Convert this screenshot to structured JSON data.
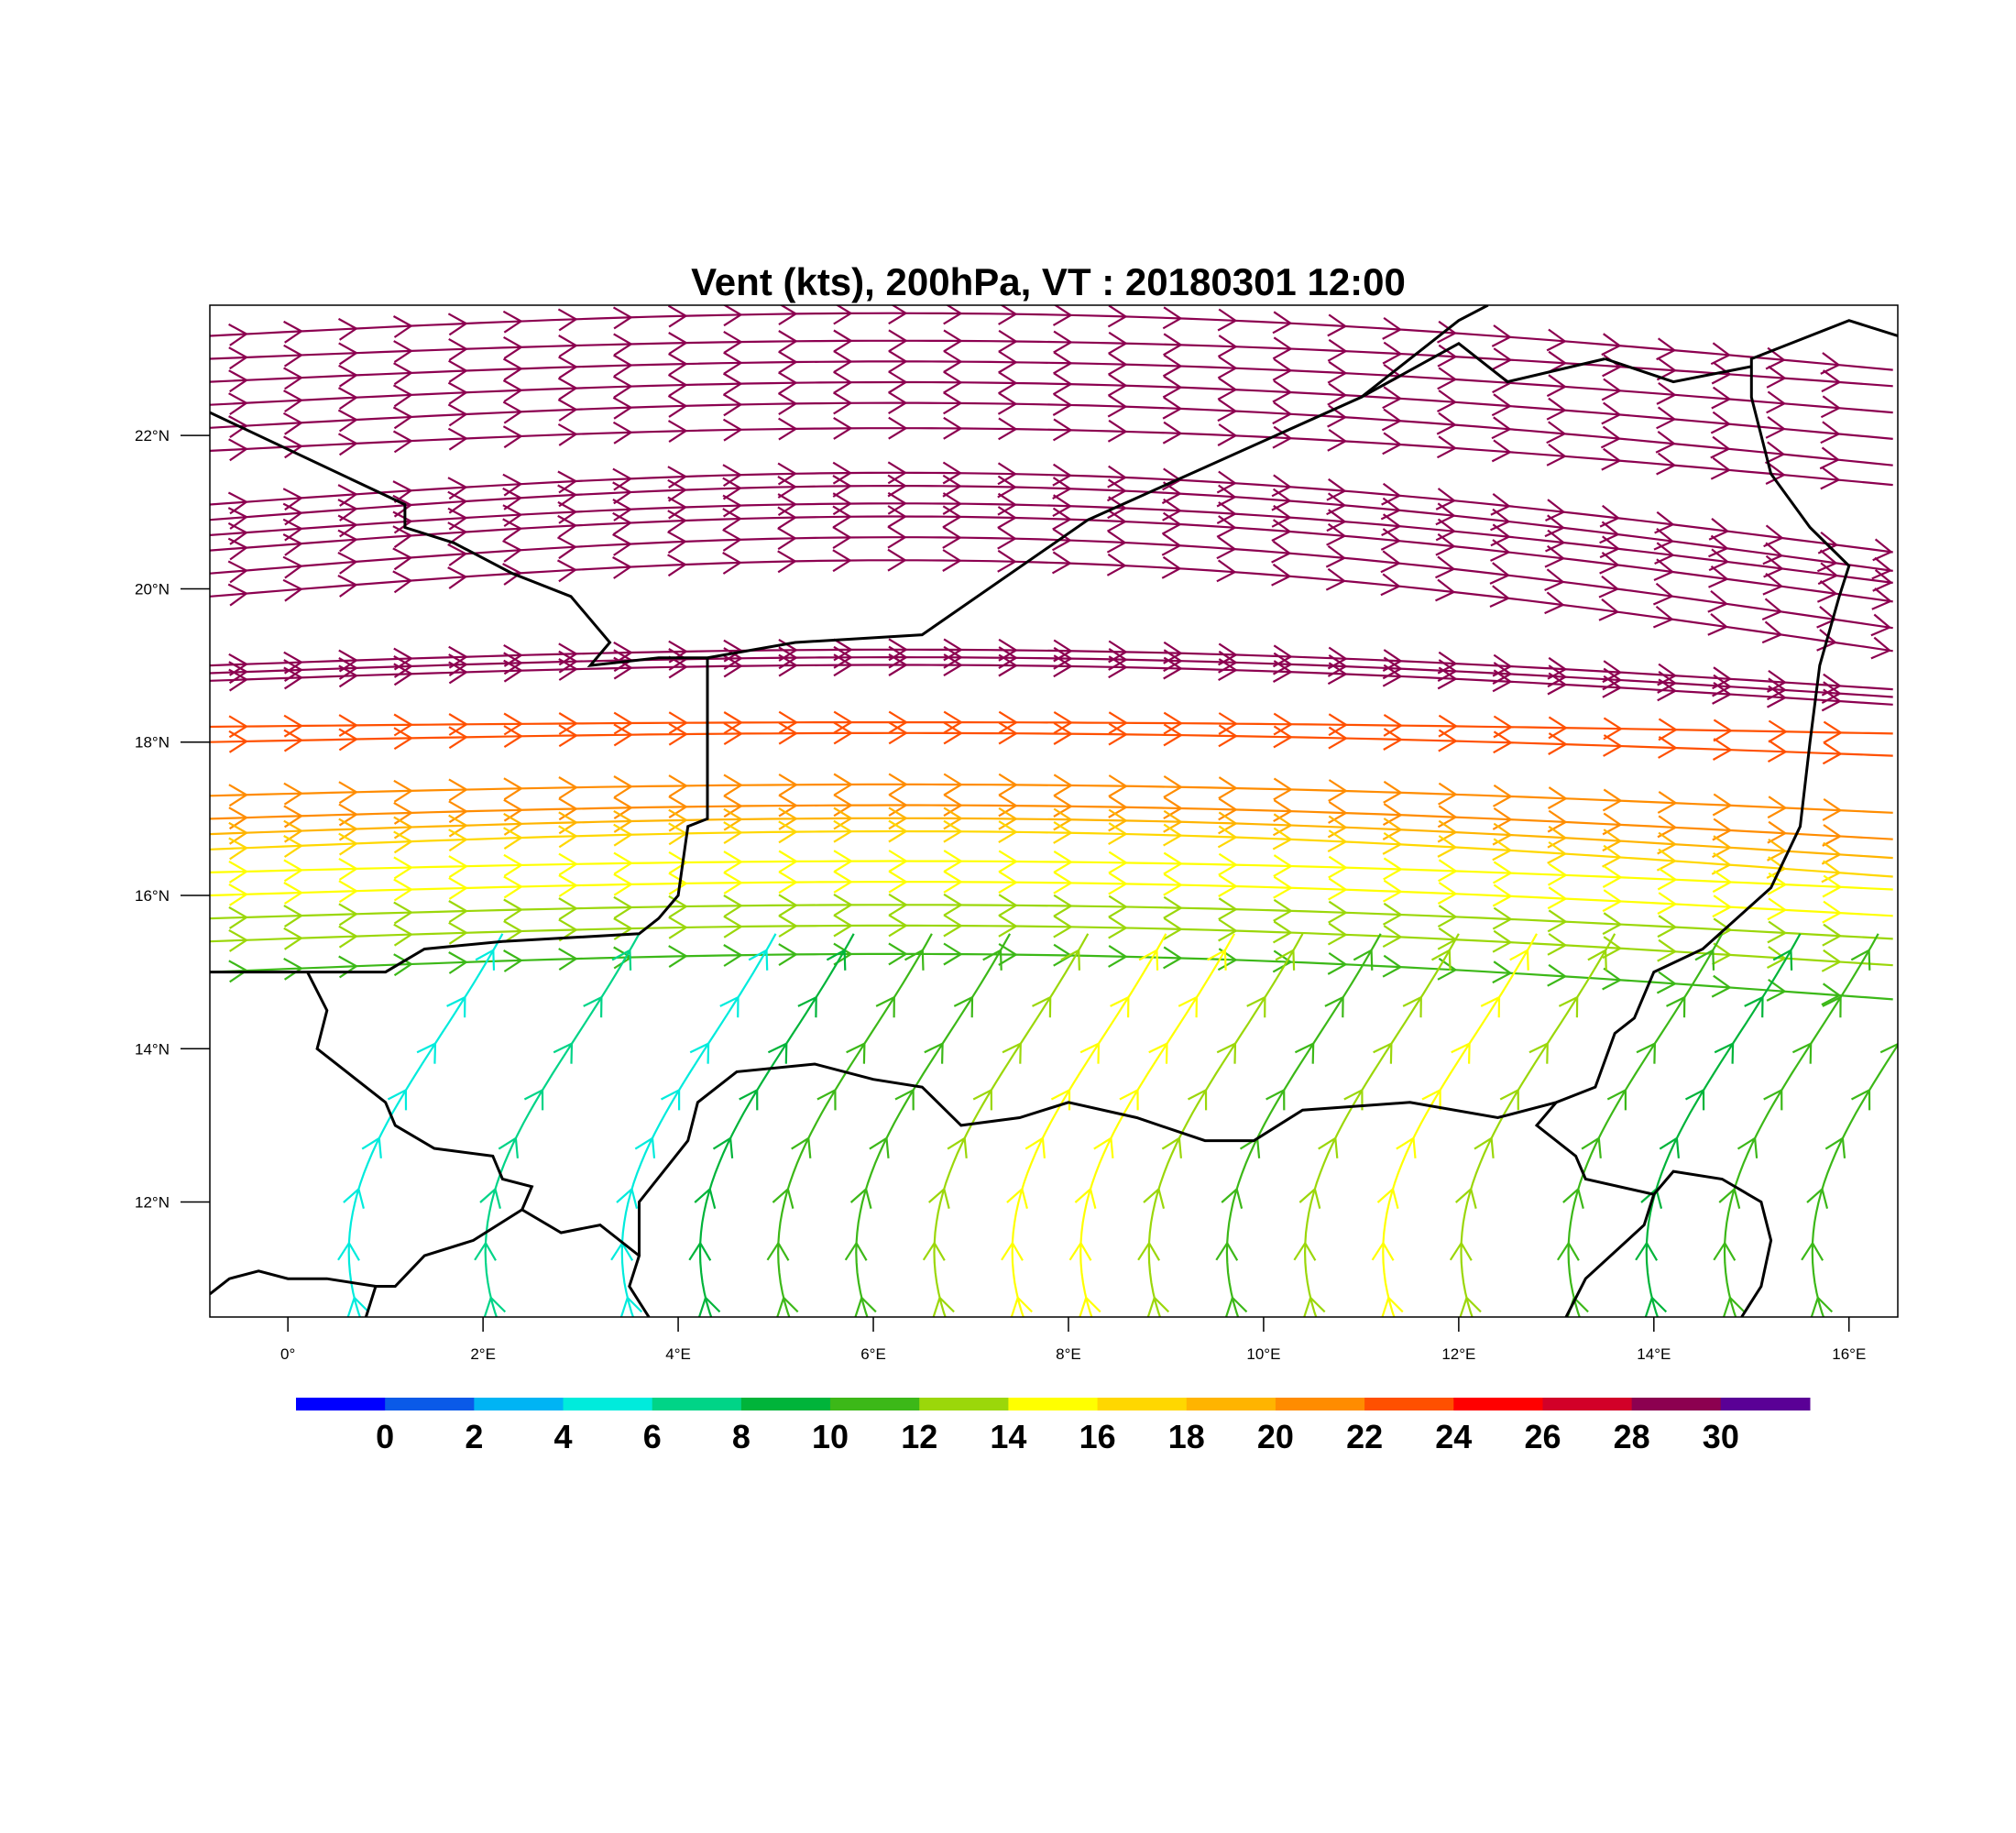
{
  "title": "Vent (kts), 200hPa, VT : 20180301  12:00",
  "map": {
    "lon_range": [
      -0.8,
      16.5
    ],
    "lat_range": [
      10.5,
      23.7
    ],
    "lon_ticks": [
      {
        "value": 0,
        "label": "0°"
      },
      {
        "value": 2,
        "label": "2°E"
      },
      {
        "value": 4,
        "label": "4°E"
      },
      {
        "value": 6,
        "label": "6°E"
      },
      {
        "value": 8,
        "label": "8°E"
      },
      {
        "value": 10,
        "label": "10°E"
      },
      {
        "value": 12,
        "label": "12°E"
      },
      {
        "value": 14,
        "label": "14°E"
      },
      {
        "value": 16,
        "label": "16°E"
      }
    ],
    "lat_ticks": [
      {
        "value": 12,
        "label": "12°N"
      },
      {
        "value": 14,
        "label": "14°N"
      },
      {
        "value": 16,
        "label": "16°N"
      },
      {
        "value": 18,
        "label": "18°N"
      },
      {
        "value": 20,
        "label": "20°N"
      },
      {
        "value": 22,
        "label": "22°N"
      }
    ],
    "borders": [
      [
        [
          -0.8,
          22.3
        ],
        [
          1.2,
          21.1
        ],
        [
          1.2,
          20.8
        ],
        [
          1.7,
          20.6
        ],
        [
          2.3,
          20.2
        ],
        [
          2.9,
          19.9
        ],
        [
          3.3,
          19.3
        ],
        [
          3.1,
          19.0
        ],
        [
          3.8,
          19.1
        ],
        [
          4.3,
          19.1
        ],
        [
          5.2,
          19.3
        ],
        [
          6.5,
          19.4
        ],
        [
          8.2,
          20.9
        ],
        [
          11.0,
          22.5
        ],
        [
          12.0,
          23.5
        ],
        [
          12.3,
          23.7
        ]
      ],
      [
        [
          4.3,
          19.1
        ],
        [
          4.3,
          17.0
        ],
        [
          4.1,
          16.9
        ],
        [
          4.0,
          16.0
        ],
        [
          3.8,
          15.7
        ],
        [
          3.6,
          15.5
        ],
        [
          2.2,
          15.4
        ],
        [
          1.4,
          15.3
        ],
        [
          1.0,
          15.0
        ],
        [
          0.2,
          15.0
        ],
        [
          -0.8,
          15.0
        ]
      ],
      [
        [
          0.2,
          15.0
        ],
        [
          0.4,
          14.5
        ],
        [
          0.3,
          14.0
        ],
        [
          1.0,
          13.3
        ],
        [
          1.1,
          13.0
        ],
        [
          1.5,
          12.7
        ],
        [
          2.1,
          12.6
        ],
        [
          2.2,
          12.3
        ],
        [
          2.5,
          12.2
        ],
        [
          2.4,
          11.9
        ],
        [
          2.8,
          11.6
        ],
        [
          3.2,
          11.7
        ],
        [
          3.6,
          11.3
        ],
        [
          3.5,
          10.9
        ],
        [
          3.7,
          10.5
        ]
      ],
      [
        [
          3.6,
          11.3
        ],
        [
          3.6,
          12.0
        ],
        [
          4.1,
          12.8
        ],
        [
          4.2,
          13.3
        ],
        [
          4.6,
          13.7
        ],
        [
          5.4,
          13.8
        ],
        [
          6.0,
          13.6
        ],
        [
          6.5,
          13.5
        ],
        [
          6.9,
          13.0
        ],
        [
          7.5,
          13.1
        ],
        [
          8.0,
          13.3
        ],
        [
          8.7,
          13.1
        ],
        [
          9.4,
          12.8
        ],
        [
          9.9,
          12.8
        ],
        [
          10.4,
          13.2
        ],
        [
          11.5,
          13.3
        ],
        [
          12.4,
          13.1
        ],
        [
          13.0,
          13.3
        ],
        [
          13.4,
          13.5
        ],
        [
          13.6,
          14.2
        ],
        [
          13.8,
          14.4
        ],
        [
          14.0,
          15.0
        ],
        [
          14.5,
          15.3
        ],
        [
          15.2,
          16.1
        ],
        [
          15.5,
          16.9
        ],
        [
          15.6,
          18.0
        ],
        [
          15.7,
          19.0
        ],
        [
          15.9,
          19.9
        ],
        [
          16.0,
          20.3
        ],
        [
          15.6,
          20.8
        ],
        [
          15.2,
          21.5
        ],
        [
          15.0,
          22.5
        ],
        [
          15.0,
          23.0
        ],
        [
          16.0,
          23.5
        ],
        [
          16.5,
          23.3
        ]
      ],
      [
        [
          13.0,
          13.3
        ],
        [
          12.8,
          13.0
        ],
        [
          13.2,
          12.6
        ],
        [
          13.3,
          12.3
        ],
        [
          14.0,
          12.1
        ],
        [
          14.2,
          12.4
        ],
        [
          14.7,
          12.3
        ],
        [
          15.1,
          12.0
        ],
        [
          15.2,
          11.5
        ],
        [
          15.1,
          10.9
        ],
        [
          14.9,
          10.5
        ]
      ],
      [
        [
          14.0,
          12.1
        ],
        [
          13.9,
          11.7
        ],
        [
          13.3,
          11.0
        ],
        [
          13.1,
          10.5
        ]
      ],
      [
        [
          -0.8,
          10.8
        ],
        [
          -0.6,
          11.0
        ],
        [
          -0.3,
          11.1
        ],
        [
          0.0,
          11.0
        ],
        [
          0.4,
          11.0
        ],
        [
          0.9,
          10.9
        ],
        [
          1.1,
          10.9
        ],
        [
          1.4,
          11.3
        ],
        [
          1.9,
          11.5
        ],
        [
          2.4,
          11.9
        ]
      ],
      [
        [
          0.9,
          10.9
        ],
        [
          0.8,
          10.5
        ]
      ],
      [
        [
          13.5,
          23.0
        ],
        [
          14.2,
          22.7
        ],
        [
          15.0,
          22.9
        ]
      ],
      [
        [
          11.0,
          22.5
        ],
        [
          12.0,
          23.2
        ],
        [
          12.5,
          22.7
        ],
        [
          13.5,
          23.0
        ]
      ]
    ],
    "streamlines": [
      {
        "lat": 23.3,
        "amp": 0.5,
        "speed": 31
      },
      {
        "lat": 23.0,
        "amp": 0.4,
        "speed": 31
      },
      {
        "lat": 22.7,
        "amp": 0.45,
        "speed": 31
      },
      {
        "lat": 22.4,
        "amp": 0.5,
        "speed": 31
      },
      {
        "lat": 22.1,
        "amp": 0.55,
        "speed": 31
      },
      {
        "lat": 21.8,
        "amp": 0.5,
        "speed": 31
      },
      {
        "lat": 21.1,
        "amp": 0.7,
        "speed": 31
      },
      {
        "lat": 20.9,
        "amp": 0.75,
        "speed": 31
      },
      {
        "lat": 20.7,
        "amp": 0.7,
        "speed": 31
      },
      {
        "lat": 20.5,
        "amp": 0.75,
        "speed": 31
      },
      {
        "lat": 20.2,
        "amp": 0.8,
        "speed": 31
      },
      {
        "lat": 19.9,
        "amp": 0.8,
        "speed": 31
      },
      {
        "lat": 19.0,
        "amp": 0.35,
        "speed": 31
      },
      {
        "lat": 18.9,
        "amp": 0.35,
        "speed": 31
      },
      {
        "lat": 18.8,
        "amp": 0.35,
        "speed": 31
      },
      {
        "lat": 18.2,
        "amp": 0.1,
        "speed": 25
      },
      {
        "lat": 18.0,
        "amp": 0.2,
        "speed": 24
      },
      {
        "lat": 17.3,
        "amp": 0.25,
        "speed": 23
      },
      {
        "lat": 17.0,
        "amp": 0.3,
        "speed": 22
      },
      {
        "lat": 16.8,
        "amp": 0.35,
        "speed": 21
      },
      {
        "lat": 16.6,
        "amp": 0.4,
        "speed": 19
      },
      {
        "lat": 16.3,
        "amp": 0.25,
        "speed": 17
      },
      {
        "lat": 16.0,
        "amp": 0.3,
        "speed": 16
      },
      {
        "lat": 15.7,
        "amp": 0.3,
        "speed": 15
      },
      {
        "lat": 15.4,
        "amp": 0.35,
        "speed": 14
      },
      {
        "lat": 15.0,
        "amp": 0.4,
        "speed": 12
      }
    ],
    "curved_streams": [
      {
        "lon": 0.8,
        "speed": 6
      },
      {
        "lon": 2.2,
        "speed": 9
      },
      {
        "lon": 3.6,
        "speed": 7
      },
      {
        "lon": 4.4,
        "speed": 10
      },
      {
        "lon": 5.2,
        "speed": 12
      },
      {
        "lon": 6.0,
        "speed": 13
      },
      {
        "lon": 6.8,
        "speed": 15
      },
      {
        "lon": 7.6,
        "speed": 17
      },
      {
        "lon": 8.3,
        "speed": 16
      },
      {
        "lon": 9.0,
        "speed": 14
      },
      {
        "lon": 9.8,
        "speed": 12
      },
      {
        "lon": 10.6,
        "speed": 15
      },
      {
        "lon": 11.4,
        "speed": 17
      },
      {
        "lon": 12.2,
        "speed": 15
      },
      {
        "lon": 13.3,
        "speed": 12
      },
      {
        "lon": 14.1,
        "speed": 11
      },
      {
        "lon": 14.9,
        "speed": 13
      },
      {
        "lon": 15.8,
        "speed": 12
      }
    ]
  },
  "colorbar": {
    "colors": [
      "#0000ff",
      "#0a5ae8",
      "#00b4f4",
      "#00ebdc",
      "#00d487",
      "#00b43a",
      "#3cb818",
      "#9bd70a",
      "#ffff00",
      "#ffd700",
      "#ffb400",
      "#ff8c00",
      "#ff5000",
      "#ff0000",
      "#d20028",
      "#8c0050",
      "#5a0096"
    ],
    "labels": [
      "0",
      "2",
      "4",
      "6",
      "8",
      "10",
      "12",
      "14",
      "16",
      "18",
      "20",
      "22",
      "24",
      "26",
      "28",
      "30"
    ]
  }
}
